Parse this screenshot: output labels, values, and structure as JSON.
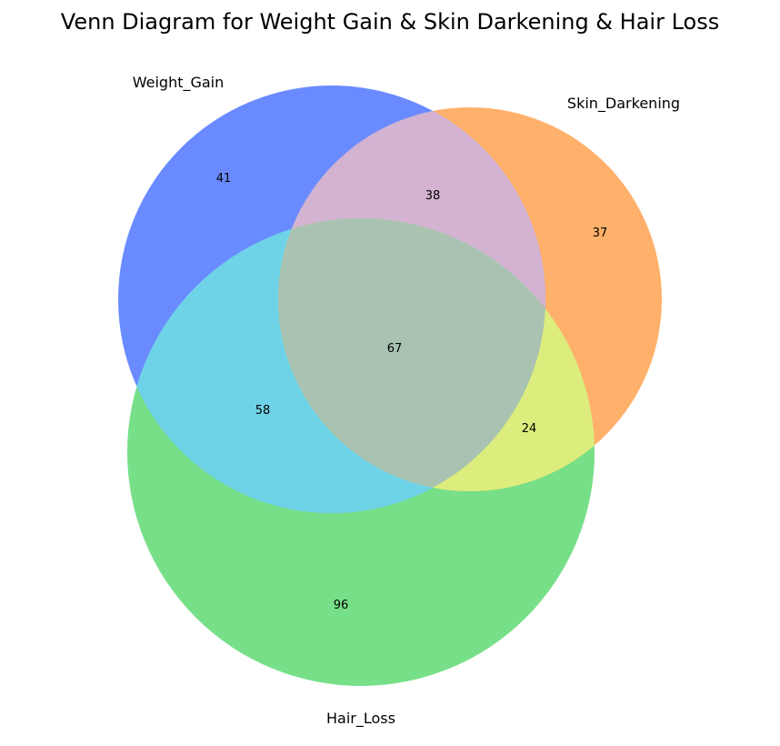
{
  "title": "Venn Diagram for Weight Gain & Skin Darkening & Hair Loss",
  "sets": {
    "a": {
      "label": "Weight_Gain",
      "color": "#6a8bff"
    },
    "b": {
      "label": "Skin_Darkening",
      "color": "#ffb06a"
    },
    "c": {
      "label": "Hair_Loss",
      "color": "#77df88"
    }
  },
  "region_colors": {
    "ab": "#d3b3d1",
    "ac": "#6fd3e8",
    "bc": "#dced7d",
    "abc": "#a9c2b1"
  },
  "counts": {
    "a_only": "41",
    "b_only": "37",
    "c_only": "96",
    "ab_only": "38",
    "ac_only": "58",
    "bc_only": "24",
    "abc": "67"
  }
}
